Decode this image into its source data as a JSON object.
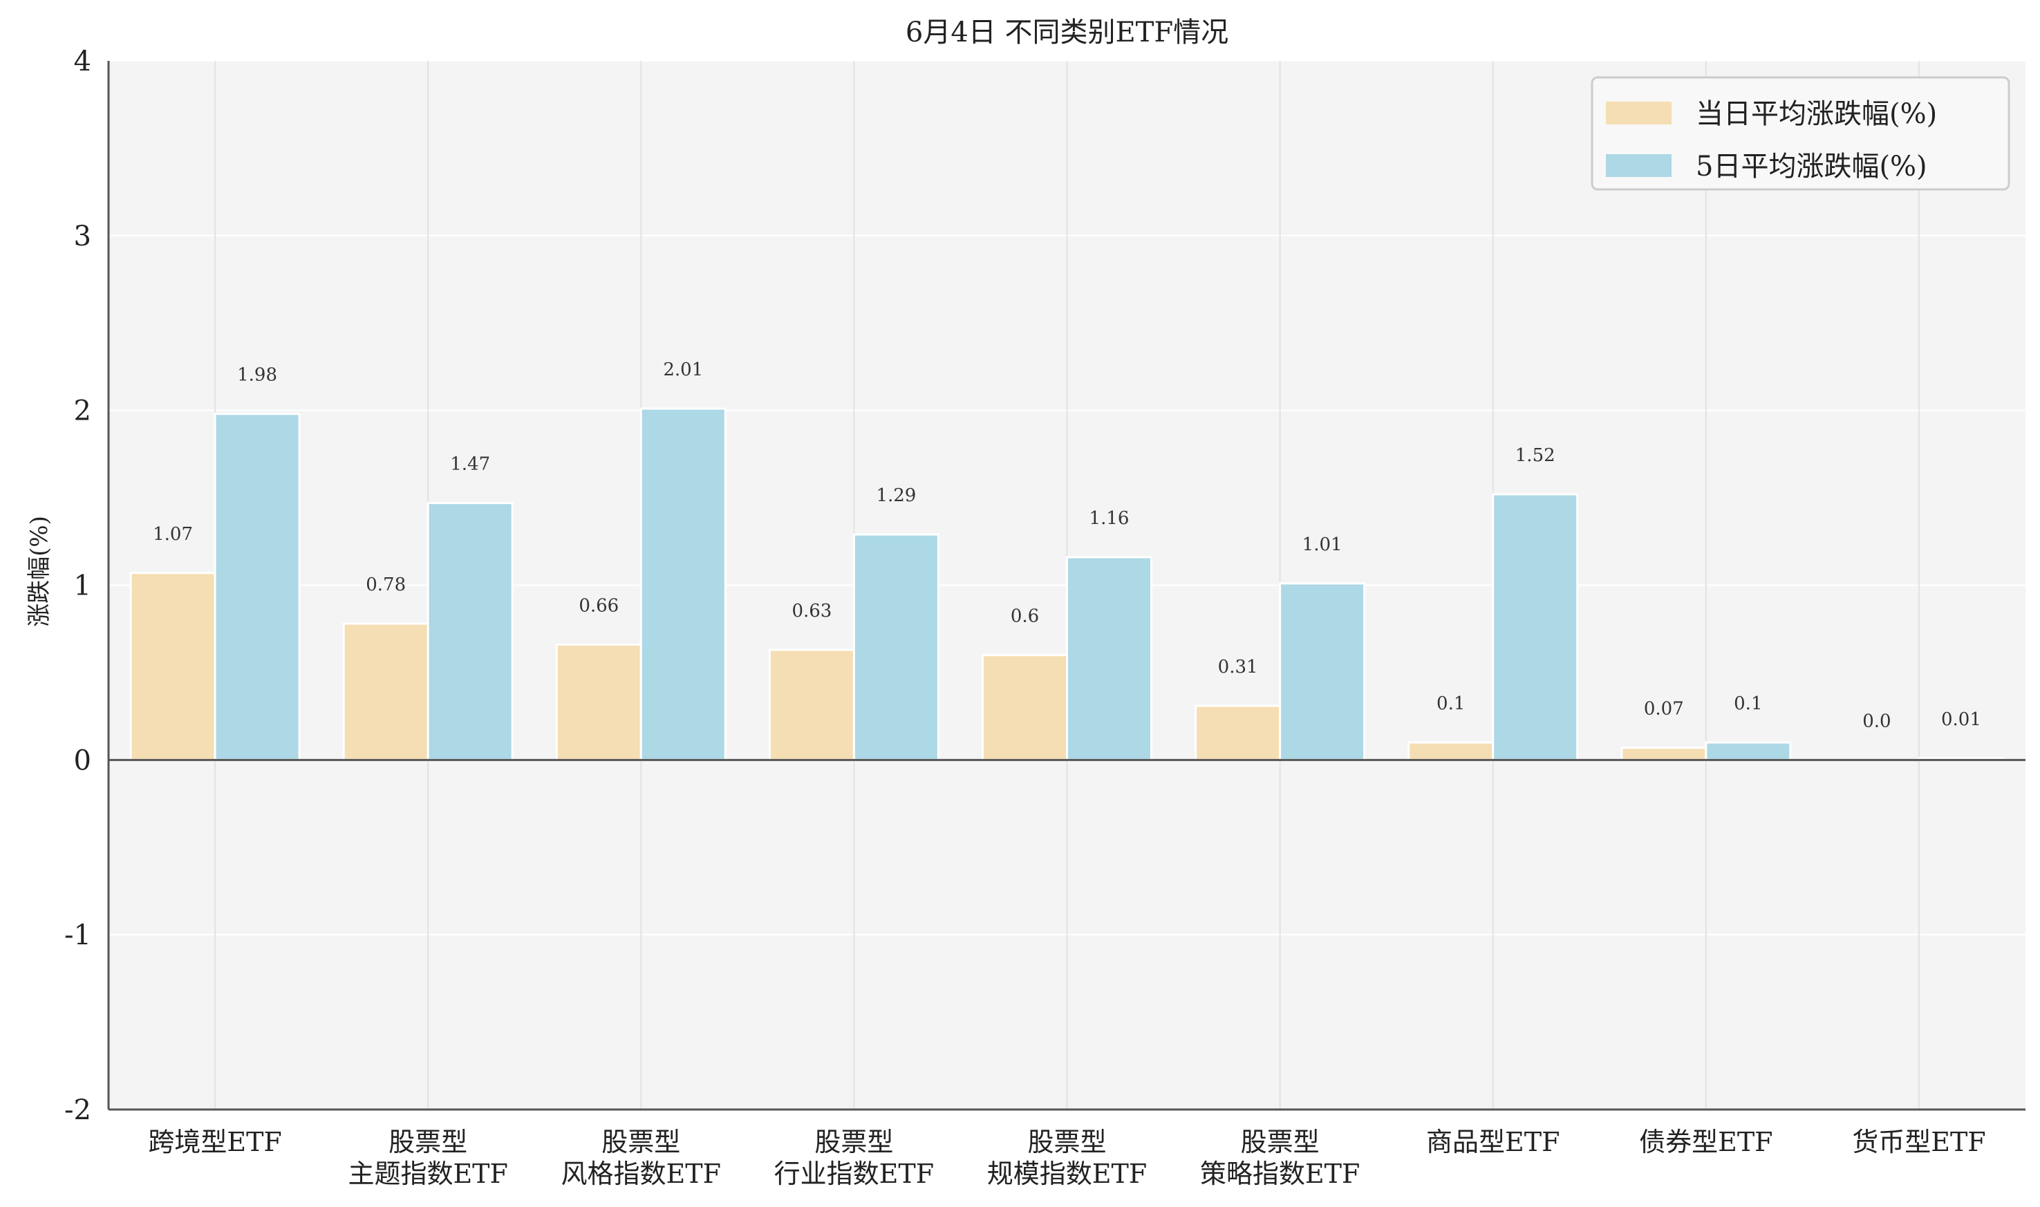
{
  "chart_data": {
    "type": "bar",
    "title": "6月4日 不同类别ETF情况",
    "xlabel": "",
    "ylabel": "涨跌幅(%)",
    "ylim": [
      -2,
      4
    ],
    "yticks": [
      "-2",
      "-1",
      "0",
      "1",
      "2",
      "3",
      "4"
    ],
    "categories": [
      [
        "跨境型ETF"
      ],
      [
        "股票型",
        "主题指数ETF"
      ],
      [
        "股票型",
        "风格指数ETF"
      ],
      [
        "股票型",
        "行业指数ETF"
      ],
      [
        "股票型",
        "规模指数ETF"
      ],
      [
        "股票型",
        "策略指数ETF"
      ],
      [
        "商品型ETF"
      ],
      [
        "债券型ETF"
      ],
      [
        "货币型ETF"
      ]
    ],
    "series": [
      {
        "name": "当日平均涨跌幅(%)",
        "color": "#f5deb3",
        "values": [
          1.07,
          0.78,
          0.66,
          0.63,
          0.6,
          0.31,
          0.1,
          0.07,
          0.0
        ],
        "labels": [
          "1.07",
          "0.78",
          "0.66",
          "0.63",
          "0.6",
          "0.31",
          "0.1",
          "0.07",
          "0.0"
        ]
      },
      {
        "name": "5日平均涨跌幅(%)",
        "color": "#add8e6",
        "values": [
          1.98,
          1.47,
          2.01,
          1.29,
          1.16,
          1.01,
          1.52,
          0.1,
          0.01
        ],
        "labels": [
          "1.98",
          "1.47",
          "2.01",
          "1.29",
          "1.16",
          "1.01",
          "1.52",
          "0.1",
          "0.01"
        ]
      }
    ],
    "grid": true,
    "legend_position": "top-right",
    "background": "#f4f4f4"
  }
}
